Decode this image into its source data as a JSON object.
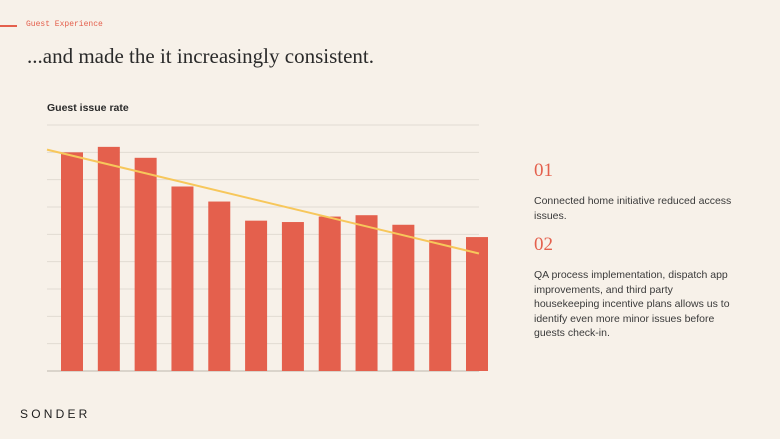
{
  "header": {
    "section_label": "Guest Experience",
    "title": "...and made the it increasingly consistent."
  },
  "chart_data": {
    "type": "bar",
    "title": "Guest issue rate",
    "xlabel": "",
    "ylabel": "",
    "ylim": [
      0,
      9
    ],
    "grid": true,
    "categories": [
      "",
      "",
      "",
      "",
      "",
      "",
      "",
      "",
      "",
      "",
      "",
      ""
    ],
    "series": [
      {
        "values": [
          8.0,
          8.2,
          7.8,
          6.75,
          6.2,
          5.5,
          5.45,
          5.65,
          5.7,
          5.35,
          4.8,
          4.9
        ],
        "color": "#e4604d"
      }
    ],
    "trendline": {
      "start": 8.1,
      "end": 4.3,
      "color": "#f7c75b"
    }
  },
  "points": [
    {
      "number": "01",
      "text": "Connected home initiative reduced access issues."
    },
    {
      "number": "02",
      "text": "QA process implementation, dispatch app improvements, and third party housekeeping incentive plans allows us to identify even more minor issues before guests check-in."
    }
  ],
  "brand": {
    "logo": "SONDER"
  }
}
